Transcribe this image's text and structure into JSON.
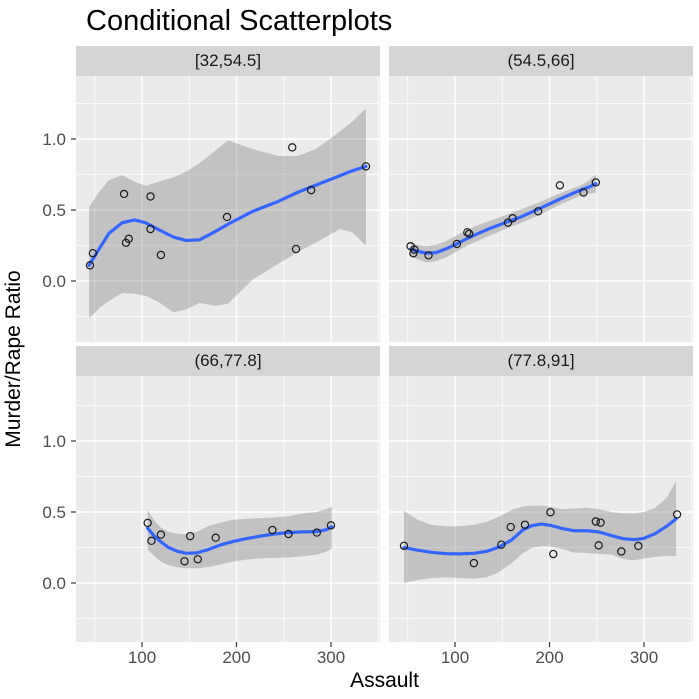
{
  "title": "Conditional Scatterplots",
  "colors": {
    "smooth_line": "#3366FF",
    "panel_background": "#EBEBEB",
    "strip_background": "#D5D5D5",
    "grid_line": "#FFFFFF",
    "ribbon": "rgba(110,110,110,0.32)",
    "point_stroke": "#1A1A1A",
    "tick_label": "#4D4D4D",
    "tick_mark": "#333333",
    "axis_text": "#000000"
  },
  "chart_data": {
    "type": "scatter",
    "title": "Conditional Scatterplots",
    "xlabel": "Assault",
    "ylabel": "Murder/Rape Ratio",
    "grid": true,
    "legend": false,
    "x_domain": [
      30.2,
      352
    ],
    "y_domain": [
      -0.44,
      1.45
    ],
    "x_ticks": [
      100,
      200,
      300
    ],
    "x_tick_labels": [
      "100",
      "200",
      "300"
    ],
    "x_minor_ticks": [
      50,
      150,
      250,
      350
    ],
    "y_ticks": [
      1.0,
      0.5,
      0.0
    ],
    "y_tick_labels": [
      "1.0",
      "0.5",
      "0.0"
    ],
    "y_minor_ticks": [
      1.25,
      0.75,
      0.25,
      -0.25
    ],
    "facets": [
      {
        "label": "[32,54.5]",
        "points": [
          [
            45,
            0.11
          ],
          [
            48,
            0.196
          ],
          [
            81,
            0.613
          ],
          [
            83,
            0.269
          ],
          [
            86,
            0.297
          ],
          [
            109,
            0.595
          ],
          [
            109,
            0.366
          ],
          [
            120,
            0.183
          ],
          [
            190,
            0.451
          ],
          [
            259,
            0.941
          ],
          [
            263,
            0.225
          ],
          [
            279,
            0.64
          ],
          [
            337,
            0.807
          ]
        ],
        "smooth": {
          "x": [
            44,
            55,
            65,
            79,
            92,
            104,
            118,
            133,
            147,
            161,
            178,
            191,
            217,
            244,
            265,
            284,
            309,
            322,
            337
          ],
          "y": [
            0.11,
            0.23,
            0.335,
            0.41,
            0.43,
            0.41,
            0.36,
            0.31,
            0.285,
            0.29,
            0.35,
            0.4,
            0.49,
            0.56,
            0.625,
            0.675,
            0.74,
            0.775,
            0.807
          ]
        },
        "ribbon": {
          "x": [
            44,
            55,
            65,
            79,
            92,
            104,
            118,
            133,
            147,
            161,
            178,
            191,
            217,
            244,
            265,
            284,
            309,
            322,
            337
          ],
          "upper": [
            0.52,
            0.63,
            0.71,
            0.745,
            0.7,
            0.67,
            0.7,
            0.73,
            0.77,
            0.83,
            0.92,
            0.99,
            0.93,
            0.88,
            0.88,
            0.93,
            1.05,
            1.12,
            1.215
          ],
          "lower": [
            -0.264,
            -0.19,
            -0.14,
            -0.085,
            -0.09,
            -0.105,
            -0.15,
            -0.22,
            -0.2,
            -0.155,
            -0.175,
            -0.16,
            0.01,
            0.12,
            0.205,
            0.27,
            0.365,
            0.345,
            0.25
          ]
        }
      },
      {
        "label": "(54.5,66]",
        "points": [
          [
            53,
            0.245
          ],
          [
            56,
            0.195
          ],
          [
            57,
            0.221
          ],
          [
            72,
            0.181
          ],
          [
            102,
            0.261
          ],
          [
            113,
            0.343
          ],
          [
            115,
            0.333
          ],
          [
            156,
            0.411
          ],
          [
            161,
            0.442
          ],
          [
            188,
            0.491
          ],
          [
            211,
            0.674
          ],
          [
            236,
            0.623
          ],
          [
            249,
            0.694
          ]
        ],
        "smooth": {
          "x": [
            53,
            60,
            70,
            80,
            90,
            100,
            113,
            125,
            135,
            146,
            156,
            170,
            188,
            205,
            216,
            232,
            241,
            249
          ],
          "y": [
            0.225,
            0.21,
            0.196,
            0.2,
            0.225,
            0.255,
            0.3,
            0.336,
            0.365,
            0.393,
            0.418,
            0.452,
            0.506,
            0.558,
            0.592,
            0.638,
            0.66,
            0.685
          ]
        },
        "ribbon": {
          "x": [
            53,
            60,
            70,
            80,
            90,
            100,
            113,
            125,
            135,
            146,
            156,
            170,
            188,
            205,
            216,
            232,
            241,
            249
          ],
          "upper": [
            0.275,
            0.255,
            0.245,
            0.255,
            0.28,
            0.315,
            0.36,
            0.395,
            0.42,
            0.445,
            0.47,
            0.505,
            0.55,
            0.6,
            0.63,
            0.67,
            0.705,
            0.75
          ],
          "lower": [
            0.17,
            0.155,
            0.13,
            0.14,
            0.165,
            0.2,
            0.25,
            0.285,
            0.315,
            0.345,
            0.373,
            0.408,
            0.462,
            0.518,
            0.553,
            0.598,
            0.613,
            0.622
          ]
        }
      },
      {
        "label": "(66,77.8]",
        "points": [
          [
            106,
            0.423
          ],
          [
            110,
            0.297
          ],
          [
            120,
            0.341
          ],
          [
            145,
            0.153
          ],
          [
            151,
            0.33
          ],
          [
            159,
            0.167
          ],
          [
            178,
            0.319
          ],
          [
            238,
            0.373
          ],
          [
            255,
            0.345
          ],
          [
            285,
            0.355
          ],
          [
            300,
            0.406
          ]
        ],
        "smooth": {
          "x": [
            106,
            113,
            120,
            128,
            138,
            147,
            158,
            170,
            183,
            196,
            210,
            225,
            240,
            255,
            270,
            285,
            295,
            301
          ],
          "y": [
            0.386,
            0.33,
            0.29,
            0.25,
            0.222,
            0.209,
            0.212,
            0.235,
            0.268,
            0.292,
            0.312,
            0.33,
            0.345,
            0.355,
            0.36,
            0.362,
            0.375,
            0.397
          ]
        },
        "ribbon": {
          "x": [
            106,
            113,
            120,
            128,
            138,
            147,
            158,
            170,
            183,
            196,
            210,
            225,
            240,
            255,
            270,
            285,
            295,
            301
          ],
          "upper": [
            0.512,
            0.44,
            0.39,
            0.36,
            0.347,
            0.343,
            0.36,
            0.4,
            0.425,
            0.445,
            0.452,
            0.457,
            0.462,
            0.47,
            0.49,
            0.5,
            0.52,
            0.538
          ],
          "lower": [
            0.237,
            0.19,
            0.15,
            0.125,
            0.11,
            0.105,
            0.103,
            0.112,
            0.13,
            0.15,
            0.165,
            0.173,
            0.177,
            0.18,
            0.188,
            0.2,
            0.22,
            0.242
          ]
        }
      },
      {
        "label": "(77.8,91]",
        "points": [
          [
            46,
            0.262
          ],
          [
            120,
            0.14
          ],
          [
            149,
            0.27
          ],
          [
            159,
            0.394
          ],
          [
            174,
            0.41
          ],
          [
            201,
            0.498
          ],
          [
            204,
            0.204
          ],
          [
            249,
            0.433
          ],
          [
            252,
            0.265
          ],
          [
            254,
            0.425
          ],
          [
            276,
            0.222
          ],
          [
            294,
            0.261
          ],
          [
            335,
            0.483
          ]
        ],
        "smooth": {
          "x": [
            46,
            60,
            75,
            90,
            105,
            120,
            133,
            146,
            160,
            172,
            182,
            192,
            202,
            213,
            226,
            240,
            252,
            265,
            278,
            290,
            300,
            312,
            324,
            334
          ],
          "y": [
            0.249,
            0.232,
            0.216,
            0.207,
            0.205,
            0.209,
            0.222,
            0.252,
            0.303,
            0.375,
            0.405,
            0.415,
            0.405,
            0.384,
            0.368,
            0.368,
            0.36,
            0.335,
            0.312,
            0.305,
            0.315,
            0.348,
            0.4,
            0.452
          ]
        },
        "ribbon": {
          "x": [
            46,
            60,
            75,
            90,
            105,
            120,
            133,
            146,
            160,
            172,
            182,
            192,
            202,
            213,
            226,
            240,
            252,
            265,
            278,
            290,
            300,
            312,
            324,
            334
          ],
          "upper": [
            0.51,
            0.445,
            0.41,
            0.4,
            0.4,
            0.41,
            0.43,
            0.465,
            0.515,
            0.54,
            0.545,
            0.545,
            0.535,
            0.52,
            0.525,
            0.53,
            0.52,
            0.5,
            0.49,
            0.49,
            0.5,
            0.53,
            0.6,
            0.72
          ],
          "lower": [
            0.0,
            0.02,
            0.035,
            0.04,
            0.035,
            0.03,
            0.04,
            0.075,
            0.14,
            0.21,
            0.25,
            0.26,
            0.255,
            0.24,
            0.215,
            0.21,
            0.205,
            0.2,
            0.168,
            0.16,
            0.172,
            0.185,
            0.19,
            0.19
          ]
        }
      }
    ]
  }
}
